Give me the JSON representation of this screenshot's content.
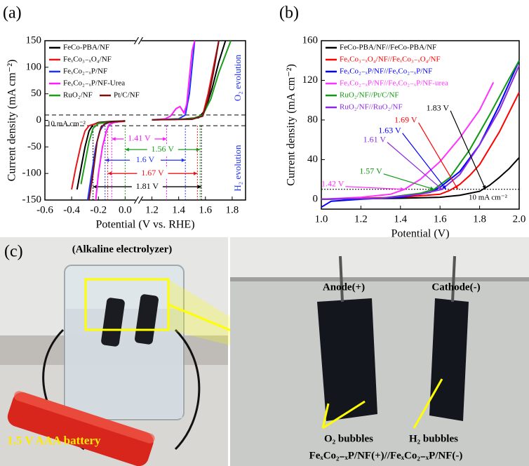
{
  "panel_labels": [
    "(a)",
    "(b)",
    "(c)"
  ],
  "chart_data": [
    {
      "type": "line",
      "xlabel": "Potential (V vs. RHE)",
      "ylabel": "Current density (mA cm⁻²)",
      "xlim": [
        -0.6,
        1.9
      ],
      "xbreak": [
        0.1,
        1.1
      ],
      "ylim": [
        -150,
        150
      ],
      "xticks": [
        -0.6,
        -0.4,
        -0.2,
        {
          "value": 0,
          "label": "0.0"
        },
        1.2,
        1.4,
        1.6,
        1.8
      ],
      "yticks": [
        -150,
        -100,
        -50,
        0,
        50,
        100,
        150
      ],
      "legend": "upper left",
      "reference_lines": [
        10,
        -10
      ],
      "reference_label": "10 mA cm⁻²",
      "texts": [
        "O₂ evolution",
        "H₂ evolution"
      ],
      "series": [
        {
          "name": "FeCo-PBA/NF",
          "color": "#000000",
          "x": [
            -0.36,
            -0.33,
            -0.3,
            -0.27,
            -0.24,
            -0.2,
            -0.1,
            0.0,
            null,
            1.2,
            1.4,
            1.55,
            1.6,
            1.65,
            1.7,
            1.75
          ],
          "values": [
            -130,
            -90,
            -50,
            -20,
            -8,
            -4,
            -2,
            -1,
            null,
            1,
            2,
            5,
            20,
            60,
            110,
            150
          ]
        },
        {
          "name": "FeₓCo₃₋ₓO₄/NF",
          "color": "#e8161b",
          "x": [
            -0.4,
            -0.37,
            -0.33,
            -0.3,
            -0.27,
            -0.2,
            0.0,
            null,
            1.2,
            1.5,
            1.58,
            1.62,
            1.66,
            1.7
          ],
          "values": [
            -130,
            -90,
            -45,
            -20,
            -10,
            -5,
            -2,
            null,
            1,
            3,
            10,
            50,
            100,
            150
          ]
        },
        {
          "name": "FeₓCo₂₋ₓP/NF",
          "color": "#1e32ff",
          "x": [
            -0.28,
            -0.25,
            -0.22,
            -0.19,
            -0.16,
            -0.12,
            0.0,
            null,
            1.2,
            1.4,
            1.45,
            1.48,
            1.5,
            1.52
          ],
          "values": [
            -150,
            -100,
            -50,
            -20,
            -8,
            -4,
            -1,
            null,
            1,
            3,
            10,
            50,
            100,
            150
          ]
        },
        {
          "name": "FeₓCo₂₋ₓP/NF-Urea",
          "color": "#ff1aff",
          "x": [
            -0.22,
            -0.2,
            -0.17,
            -0.14,
            -0.12,
            -0.08,
            0.0,
            null,
            1.2,
            1.3,
            1.34,
            1.38,
            1.41,
            1.44,
            1.46,
            1.48,
            1.5,
            1.52
          ],
          "values": [
            -150,
            -100,
            -50,
            -20,
            -8,
            -4,
            -1,
            null,
            1,
            3,
            8,
            22,
            26,
            14,
            30,
            80,
            130,
            150
          ]
        },
        {
          "name": "RuO₂/NF",
          "color": "#1a9e1a",
          "x": [
            -0.33,
            -0.3,
            -0.27,
            -0.24,
            -0.2,
            -0.1,
            0.0,
            null,
            1.2,
            1.5,
            1.58,
            1.64,
            1.7,
            1.76,
            1.79
          ],
          "values": [
            -120,
            -80,
            -40,
            -15,
            -6,
            -3,
            -1,
            null,
            1,
            3,
            10,
            40,
            90,
            130,
            150
          ]
        },
        {
          "name": "Pt/C/NF",
          "color": "#7b1010",
          "x": [
            -0.27,
            -0.24,
            -0.21,
            -0.18,
            -0.14,
            -0.1,
            0.0,
            null,
            1.2,
            1.5,
            1.58,
            1.62,
            1.66,
            1.7
          ],
          "values": [
            -150,
            -100,
            -40,
            -12,
            -5,
            -3,
            -1,
            null,
            1,
            2,
            8,
            40,
            90,
            150
          ]
        }
      ],
      "arrows": [
        {
          "text": "1.41 V",
          "color": "#ff1aff",
          "y": -35,
          "x": [
            -0.1,
            1.31
          ]
        },
        {
          "text": "1.56 V",
          "color": "#1a9e1a",
          "y": -55,
          "x": [
            0.0,
            1.56
          ]
        },
        {
          "text": "1.6 V",
          "color": "#1e32ff",
          "y": -75,
          "x": [
            -0.15,
            1.45
          ]
        },
        {
          "text": "1.67 V",
          "color": "#e8161b",
          "y": -100,
          "x": [
            -0.13,
            1.54
          ]
        },
        {
          "text": "1.81 V",
          "color": "#000000",
          "y": -125,
          "x": [
            -0.24,
            1.57
          ]
        }
      ]
    },
    {
      "type": "line",
      "xlabel": "Potential (V)",
      "ylabel": "Current density (mA cm⁻²)",
      "xlim": [
        1.0,
        2.0
      ],
      "ylim": [
        -10,
        160
      ],
      "xticks": [
        {
          "value": 1,
          "label": "1.0"
        },
        1.2,
        1.4,
        1.6,
        1.8,
        {
          "value": 2,
          "label": "2.0"
        }
      ],
      "yticks": [
        0,
        40,
        80,
        120,
        160
      ],
      "legend": "upper left",
      "reference_lines": [
        10
      ],
      "reference_label": "10 mA cm⁻²",
      "series": [
        {
          "name": "FeCo-PBA/NF//FeCo-PBA/NF",
          "color": "#000000",
          "x": [
            1.0,
            1.4,
            1.6,
            1.7,
            1.8,
            1.85,
            1.9,
            1.95,
            2.0
          ],
          "values": [
            0,
            1,
            2,
            4,
            8,
            14,
            22,
            31,
            42
          ]
        },
        {
          "name": "FeₓCo₃₋ₓO₄/NF//FeₓCo₃₋ₓO₄/NF",
          "color": "#ff0000",
          "x": [
            1.0,
            1.4,
            1.6,
            1.65,
            1.7,
            1.75,
            1.8,
            1.9,
            2.0
          ],
          "values": [
            0,
            2,
            5,
            9,
            15,
            24,
            35,
            68,
            108
          ]
        },
        {
          "name": "FeₓCo₂₋ₓP/NF//FeₓCo₂₋ₓP/NF",
          "color": "#0000ff",
          "x": [
            1.0,
            1.05,
            1.2,
            1.4,
            1.55,
            1.6,
            1.7,
            1.8,
            1.9,
            2.0
          ],
          "values": [
            -8,
            -2,
            0,
            2,
            7,
            12,
            28,
            55,
            95,
            140
          ]
        },
        {
          "name": "FeₓCo₂₋ₓP/NF//FeₓCo₂₋ₓP/NF-urea",
          "color": "#ff33ff",
          "x": [
            1.0,
            1.2,
            1.35,
            1.42,
            1.5,
            1.6,
            1.7,
            1.8,
            1.87
          ],
          "values": [
            0,
            2,
            5,
            10,
            20,
            38,
            62,
            90,
            118
          ]
        },
        {
          "name": "RuO₂/NF//Pt/C/NF",
          "color": "#119911",
          "x": [
            1.0,
            1.3,
            1.5,
            1.57,
            1.65,
            1.75,
            1.85,
            1.95,
            2.0
          ],
          "values": [
            0,
            1,
            6,
            10,
            22,
            50,
            85,
            122,
            140
          ]
        },
        {
          "name": "RuO₂/NF//RuO₂/NF",
          "color": "#8a2be2",
          "x": [
            1.0,
            1.3,
            1.5,
            1.61,
            1.7,
            1.8,
            1.9,
            2.0
          ],
          "values": [
            0,
            1,
            5,
            10,
            25,
            55,
            90,
            135
          ]
        }
      ],
      "annotations": [
        {
          "text": "1.83 V",
          "color": "#000000",
          "x": 1.83,
          "y": 10
        },
        {
          "text": "1.69 V",
          "color": "#ff0000",
          "x": 1.69,
          "y": 10
        },
        {
          "text": "1.63 V",
          "color": "#0000ff",
          "x": 1.63,
          "y": 10
        },
        {
          "text": "1.61 V",
          "color": "#8a2be2",
          "x": 1.61,
          "y": 10
        },
        {
          "text": "1.57 V",
          "color": "#119911",
          "x": 1.57,
          "y": 10
        },
        {
          "text": "1.42 V",
          "color": "#ff33ff",
          "x": 1.42,
          "y": 10
        }
      ]
    }
  ],
  "photo": {
    "title": "(Alkaline  electrolyzer)",
    "anode": "Anode(+)",
    "cathode": "Cathode(-)",
    "o2": "O₂ bubbles",
    "h2": "H₂ bubbles",
    "battery": "1.5 V AAA battery",
    "caption": "FeₓCo₂₋ₓP/NF(+)//FeₓCo₂₋ₓP/NF(-)"
  }
}
